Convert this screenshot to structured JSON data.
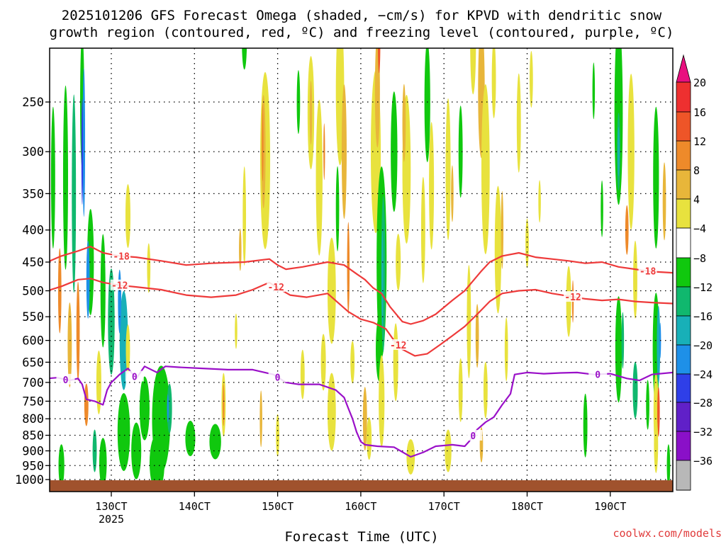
{
  "chart_data": {
    "type": "heatmap",
    "title_line1": "2025101206 GFS Forecast Omega (shaded, −cm/s) for KPVD with dendritic snow",
    "title_line2": "growth region (contoured, red, ºC) and freezing level (contoured, purple, ºC)",
    "xlabel": "Forecast Time (UTC)",
    "ylabel": "",
    "credit": "coolwx.com/models",
    "x_ticks": [
      {
        "label": "130CT",
        "pos": 0.0
      },
      {
        "label": "140CT",
        "pos": 1.0
      },
      {
        "label": "150CT",
        "pos": 2.0
      },
      {
        "label": "160CT",
        "pos": 3.0
      },
      {
        "label": "170CT",
        "pos": 4.0
      },
      {
        "label": "180CT",
        "pos": 5.0
      },
      {
        "label": "190CT",
        "pos": 6.0
      }
    ],
    "x_sublabel": "2025",
    "xlim": [
      -0.77,
      6.75
    ],
    "y_ticks": [
      250,
      300,
      350,
      400,
      450,
      500,
      550,
      600,
      650,
      700,
      750,
      800,
      850,
      900,
      950,
      1000
    ],
    "ylim": [
      1020,
      200
    ],
    "colorbar": {
      "labels": [
        "20",
        "16",
        "12",
        "8",
        "4",
        "−4",
        "−8",
        "−12",
        "−16",
        "−20",
        "−24",
        "−28",
        "−32",
        "−36"
      ],
      "colors": [
        "#e8107f",
        "#ee3030",
        "#ee5528",
        "#ee8a2a",
        "#e8b63a",
        "#e8e23e",
        "#ffffff",
        "#10c80e",
        "#10b86e",
        "#18b0b8",
        "#1e90e8",
        "#2f3fe8",
        "#6020c8",
        "#8a10c8",
        "#b8b8b8",
        "#000000"
      ]
    },
    "contour_labels": [
      {
        "text": "-18",
        "color": "#ee3a3a"
      },
      {
        "text": "-12",
        "color": "#ee3a3a"
      },
      {
        "text": "0",
        "color": "#9a10c8"
      }
    ],
    "series": [
      {
        "name": "-18",
        "color": "#ee3a3a",
        "label_at": [
          0.12,
          6.45
        ],
        "points": [
          [
            -0.77,
            450
          ],
          [
            -0.6,
            440
          ],
          [
            -0.4,
            432
          ],
          [
            -0.25,
            425
          ],
          [
            -0.1,
            435
          ],
          [
            0.1,
            440
          ],
          [
            0.3,
            442
          ],
          [
            0.6,
            448
          ],
          [
            0.9,
            455
          ],
          [
            1.2,
            452
          ],
          [
            1.6,
            450
          ],
          [
            1.9,
            445
          ],
          [
            2.0,
            455
          ],
          [
            2.1,
            462
          ],
          [
            2.3,
            458
          ],
          [
            2.6,
            450
          ],
          [
            2.8,
            455
          ],
          [
            2.95,
            470
          ],
          [
            3.05,
            480
          ],
          [
            3.15,
            495
          ],
          [
            3.25,
            505
          ],
          [
            3.35,
            530
          ],
          [
            3.5,
            560
          ],
          [
            3.6,
            565
          ],
          [
            3.75,
            558
          ],
          [
            3.9,
            545
          ],
          [
            4.1,
            518
          ],
          [
            4.25,
            500
          ],
          [
            4.35,
            482
          ],
          [
            4.45,
            465
          ],
          [
            4.55,
            450
          ],
          [
            4.7,
            440
          ],
          [
            4.9,
            435
          ],
          [
            5.1,
            442
          ],
          [
            5.3,
            445
          ],
          [
            5.5,
            448
          ],
          [
            5.7,
            452
          ],
          [
            5.9,
            450
          ],
          [
            6.1,
            458
          ],
          [
            6.3,
            462
          ],
          [
            6.5,
            466
          ],
          [
            6.75,
            468
          ]
        ]
      },
      {
        "name": "-12",
        "color": "#ee3a3a",
        "label_at": [
          0.1,
          1.98,
          3.45,
          5.55
        ],
        "points": [
          [
            -0.77,
            500
          ],
          [
            -0.6,
            492
          ],
          [
            -0.4,
            480
          ],
          [
            -0.25,
            478
          ],
          [
            -0.1,
            485
          ],
          [
            0.1,
            490
          ],
          [
            0.3,
            493
          ],
          [
            0.6,
            498
          ],
          [
            0.9,
            508
          ],
          [
            1.2,
            512
          ],
          [
            1.5,
            508
          ],
          [
            1.7,
            498
          ],
          [
            1.9,
            485
          ],
          [
            2.0,
            495
          ],
          [
            2.15,
            508
          ],
          [
            2.35,
            512
          ],
          [
            2.6,
            505
          ],
          [
            2.85,
            540
          ],
          [
            3.0,
            555
          ],
          [
            3.15,
            562
          ],
          [
            3.3,
            575
          ],
          [
            3.4,
            600
          ],
          [
            3.5,
            620
          ],
          [
            3.65,
            635
          ],
          [
            3.8,
            630
          ],
          [
            3.95,
            610
          ],
          [
            4.1,
            590
          ],
          [
            4.25,
            570
          ],
          [
            4.4,
            545
          ],
          [
            4.55,
            520
          ],
          [
            4.7,
            505
          ],
          [
            4.9,
            500
          ],
          [
            5.1,
            498
          ],
          [
            5.3,
            505
          ],
          [
            5.5,
            510
          ],
          [
            5.7,
            515
          ],
          [
            5.9,
            518
          ],
          [
            6.1,
            516
          ],
          [
            6.3,
            520
          ],
          [
            6.5,
            522
          ],
          [
            6.75,
            524
          ]
        ]
      },
      {
        "name": "0",
        "color": "#9a10c8",
        "label_at": [
          -0.55,
          0.28,
          2.0,
          4.35,
          5.85
        ],
        "points": [
          [
            -0.77,
            690
          ],
          [
            -0.65,
            688
          ],
          [
            -0.5,
            695
          ],
          [
            -0.4,
            690
          ],
          [
            -0.35,
            705
          ],
          [
            -0.3,
            745
          ],
          [
            -0.2,
            750
          ],
          [
            -0.1,
            760
          ],
          [
            -0.05,
            720
          ],
          [
            0.0,
            700
          ],
          [
            0.05,
            690
          ],
          [
            0.1,
            680
          ],
          [
            0.2,
            665
          ],
          [
            0.3,
            690
          ],
          [
            0.4,
            660
          ],
          [
            0.55,
            675
          ],
          [
            0.65,
            660
          ],
          [
            0.8,
            662
          ],
          [
            1.1,
            665
          ],
          [
            1.4,
            668
          ],
          [
            1.7,
            668
          ],
          [
            1.95,
            680
          ],
          [
            2.1,
            700
          ],
          [
            2.25,
            705
          ],
          [
            2.5,
            705
          ],
          [
            2.7,
            720
          ],
          [
            2.8,
            740
          ],
          [
            2.85,
            770
          ],
          [
            2.9,
            800
          ],
          [
            2.95,
            840
          ],
          [
            3.0,
            870
          ],
          [
            3.05,
            880
          ],
          [
            3.2,
            885
          ],
          [
            3.4,
            888
          ],
          [
            3.6,
            920
          ],
          [
            3.75,
            905
          ],
          [
            3.9,
            885
          ],
          [
            4.1,
            880
          ],
          [
            4.25,
            885
          ],
          [
            4.3,
            870
          ],
          [
            4.4,
            832
          ],
          [
            4.5,
            810
          ],
          [
            4.6,
            795
          ],
          [
            4.7,
            760
          ],
          [
            4.8,
            730
          ],
          [
            4.85,
            680
          ],
          [
            5.0,
            675
          ],
          [
            5.2,
            678
          ],
          [
            5.4,
            676
          ],
          [
            5.6,
            675
          ],
          [
            5.8,
            680
          ],
          [
            6.0,
            678
          ],
          [
            6.2,
            690
          ],
          [
            6.35,
            695
          ],
          [
            6.5,
            680
          ],
          [
            6.75,
            675
          ]
        ]
      }
    ]
  }
}
